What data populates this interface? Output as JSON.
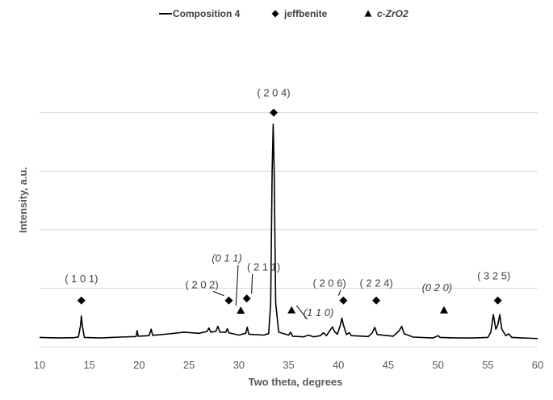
{
  "chart_data": {
    "type": "line",
    "xlabel": "Two theta, degrees",
    "ylabel": "Intensity, a.u.",
    "xlim": [
      10,
      60
    ],
    "x_ticks": [
      10,
      15,
      20,
      25,
      30,
      35,
      40,
      45,
      50,
      55,
      60
    ],
    "ylim": [
      0,
      100
    ],
    "y_gridlines": [
      0,
      20,
      40,
      60,
      80
    ],
    "grid": "horizontal",
    "legend_position": "top",
    "legend": [
      {
        "label": "Composition 4",
        "marker": "line",
        "italic": false
      },
      {
        "label": "jeffbenite",
        "marker": "diamond",
        "italic": false
      },
      {
        "label": "c-ZrO2",
        "marker": "triangle",
        "italic": true
      }
    ],
    "series": [
      {
        "name": "Composition 4",
        "color": "#000000",
        "points": [
          [
            10,
            3.2
          ],
          [
            12,
            3.0
          ],
          [
            13.5,
            3.1
          ],
          [
            13.9,
            3.4
          ],
          [
            14.1,
            7.0
          ],
          [
            14.2,
            10.5
          ],
          [
            14.3,
            7.0
          ],
          [
            14.5,
            3.2
          ],
          [
            16,
            3.0
          ],
          [
            18,
            3.3
          ],
          [
            19.7,
            3.5
          ],
          [
            19.8,
            5.5
          ],
          [
            19.9,
            3.6
          ],
          [
            21,
            3.8
          ],
          [
            21.2,
            6.0
          ],
          [
            21.35,
            3.9
          ],
          [
            23,
            4.4
          ],
          [
            24.5,
            5.0
          ],
          [
            26,
            4.6
          ],
          [
            26.8,
            5.2
          ],
          [
            27.0,
            6.4
          ],
          [
            27.2,
            5.0
          ],
          [
            27.7,
            5.3
          ],
          [
            27.9,
            7.0
          ],
          [
            28.1,
            5.0
          ],
          [
            28.7,
            5.0
          ],
          [
            28.85,
            6.2
          ],
          [
            29.0,
            4.8
          ],
          [
            30.0,
            4.0
          ],
          [
            30.7,
            4.6
          ],
          [
            30.85,
            6.7
          ],
          [
            31.0,
            4.3
          ],
          [
            32.5,
            4.0
          ],
          [
            33.0,
            4.5
          ],
          [
            33.2,
            15.0
          ],
          [
            33.35,
            60.0
          ],
          [
            33.45,
            76.0
          ],
          [
            33.55,
            60.0
          ],
          [
            33.7,
            15.0
          ],
          [
            34.0,
            5.0
          ],
          [
            35.0,
            4.0
          ],
          [
            35.2,
            5.0
          ],
          [
            35.4,
            3.6
          ],
          [
            36.5,
            3.4
          ],
          [
            37.0,
            4.0
          ],
          [
            37.5,
            3.4
          ],
          [
            38.2,
            3.8
          ],
          [
            38.5,
            4.8
          ],
          [
            38.8,
            3.8
          ],
          [
            39.2,
            5.8
          ],
          [
            39.4,
            6.8
          ],
          [
            39.6,
            5.2
          ],
          [
            39.9,
            4.3
          ],
          [
            40.2,
            7.5
          ],
          [
            40.35,
            9.8
          ],
          [
            40.5,
            7.5
          ],
          [
            40.8,
            4.2
          ],
          [
            41.1,
            4.8
          ],
          [
            41.3,
            3.8
          ],
          [
            43.0,
            3.5
          ],
          [
            43.4,
            4.8
          ],
          [
            43.65,
            6.6
          ],
          [
            43.9,
            4.2
          ],
          [
            45.5,
            3.6
          ],
          [
            46.1,
            5.5
          ],
          [
            46.35,
            7.0
          ],
          [
            46.6,
            4.5
          ],
          [
            47.5,
            3.3
          ],
          [
            49.5,
            3.0
          ],
          [
            50.0,
            3.8
          ],
          [
            50.2,
            3.2
          ],
          [
            52.0,
            3.0
          ],
          [
            53.5,
            3.0
          ],
          [
            55.0,
            3.2
          ],
          [
            55.3,
            5.0
          ],
          [
            55.55,
            11.0
          ],
          [
            55.8,
            6.0
          ],
          [
            56.0,
            7.5
          ],
          [
            56.2,
            11.0
          ],
          [
            56.4,
            6.0
          ],
          [
            56.8,
            3.8
          ],
          [
            57.1,
            4.4
          ],
          [
            57.4,
            3.2
          ],
          [
            58.5,
            3.0
          ],
          [
            59.5,
            2.9
          ],
          [
            60,
            2.8
          ]
        ]
      }
    ],
    "annotations": [
      {
        "label": "( 1 0 1)",
        "phase": "jeffbenite",
        "x": 14.2,
        "y": 15.8,
        "label_x": 14.2,
        "label_y": 22.0,
        "italic": false
      },
      {
        "label": "( 2 0 2)",
        "phase": "jeffbenite",
        "x": 29.0,
        "y": 15.8,
        "label_x": 26.3,
        "label_y": 20.0,
        "italic": false
      },
      {
        "label": "(0 1 1)",
        "phase": "c-ZrO2",
        "x": 30.2,
        "y": 12.4,
        "label_x": 28.8,
        "label_y": 29.0,
        "italic": true
      },
      {
        "label": "( 2 1 1)",
        "phase": "jeffbenite",
        "x": 30.8,
        "y": 16.5,
        "label_x": 32.5,
        "label_y": 26.0,
        "italic": false
      },
      {
        "label": "( 2 0 4)",
        "phase": "jeffbenite",
        "x": 33.5,
        "y": 80.0,
        "label_x": 33.5,
        "label_y": 85.5,
        "italic": false
      },
      {
        "label": "(1 1 0)",
        "phase": "c-ZrO2",
        "x": 35.3,
        "y": 12.5,
        "label_x": 38.0,
        "label_y": 10.5,
        "italic": true
      },
      {
        "label": "( 2 0 6)",
        "phase": "jeffbenite",
        "x": 40.5,
        "y": 15.8,
        "label_x": 39.1,
        "label_y": 20.5,
        "italic": false
      },
      {
        "label": "( 2 2 4)",
        "phase": "jeffbenite",
        "x": 43.8,
        "y": 15.8,
        "label_x": 43.8,
        "label_y": 20.5,
        "italic": false
      },
      {
        "label": "(0 2 0)",
        "phase": "c-ZrO2",
        "x": 50.6,
        "y": 12.5,
        "label_x": 49.9,
        "label_y": 19.0,
        "italic": true
      },
      {
        "label": "( 3 2 5)",
        "phase": "jeffbenite",
        "x": 56.0,
        "y": 15.8,
        "label_x": 55.6,
        "label_y": 23.0,
        "italic": false
      }
    ]
  }
}
